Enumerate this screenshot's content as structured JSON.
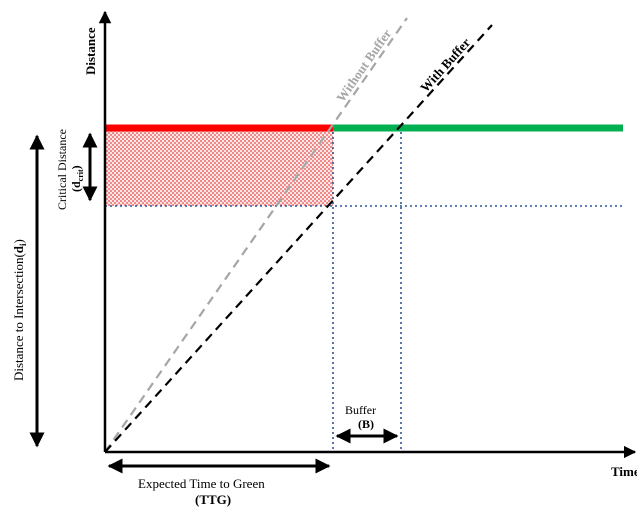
{
  "labels": {
    "y_axis": "Distance",
    "x_axis": "Time",
    "without_buffer": "Without Buffer",
    "with_buffer": "With Buffer",
    "critical_distance": "Critical Distance",
    "critical_distance_symbol_main": "(d",
    "critical_distance_symbol_sub": "crit",
    "critical_distance_symbol_close": ")",
    "distance_to_intersection": "Distance to Intersection(",
    "distance_to_intersection_symbol": "d",
    "distance_to_intersection_sub": "i",
    "distance_to_intersection_close": ")",
    "buffer": "Buffer",
    "buffer_symbol": "(B)",
    "ttg_line1": "Expected Time to Green",
    "ttg_line2": "(TTG)"
  },
  "colors": {
    "red_phase": "#ff0000",
    "green_phase": "#00b050",
    "without_buffer_line": "#a6a6a6",
    "with_buffer_line": "#000000",
    "guide_lines": "#2f5597",
    "hatch": "#f4a3a3"
  }
}
